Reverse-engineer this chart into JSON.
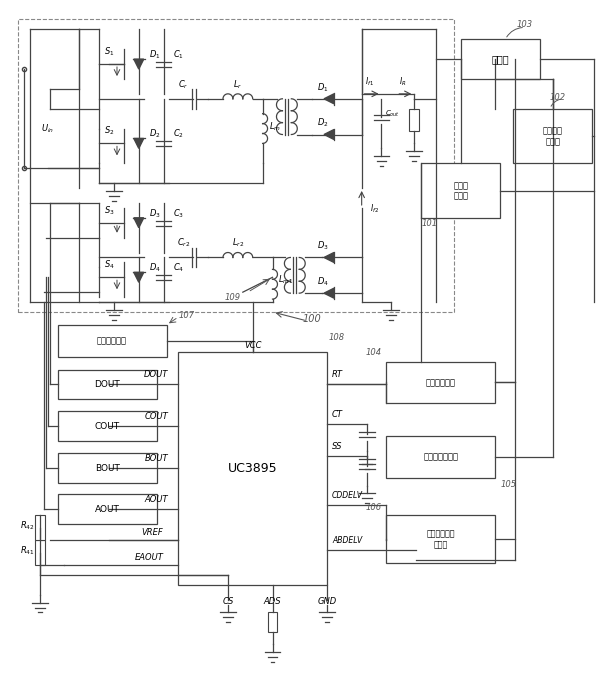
{
  "fig_width": 5.93,
  "fig_height": 6.66,
  "bg_color": "#ffffff",
  "lc": "#444444",
  "lc_light": "#777777"
}
